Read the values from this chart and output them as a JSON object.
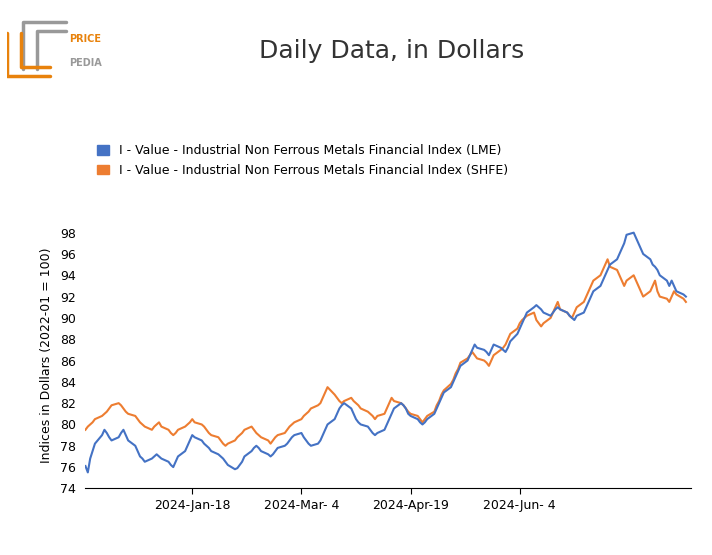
{
  "title": "Daily Data, in Dollars",
  "ylabel": "Indices in Dollars (2022-01 = 100)",
  "ylim": [
    74,
    99
  ],
  "yticks": [
    74,
    76,
    78,
    80,
    82,
    84,
    86,
    88,
    90,
    92,
    94,
    96,
    98
  ],
  "lme_color": "#4472C4",
  "shfe_color": "#ED7D31",
  "lme_label": "I - Value - Industrial Non Ferrous Metals Financial Index (LME)",
  "shfe_label": "I - Value - Industrial Non Ferrous Metals Financial Index (SHFE)",
  "line_width": 1.5,
  "background_color": "#ffffff",
  "title_fontsize": 18,
  "legend_fontsize": 9,
  "axis_fontsize": 9,
  "xlabel_dates": [
    "2024-Jan-18",
    "2024-Mar- 4",
    "2024-Apr-19",
    "2024-Jun- 4"
  ],
  "lme_data": [
    76.1,
    75.5,
    76.8,
    77.5,
    78.2,
    79.0,
    79.5,
    79.2,
    78.8,
    78.5,
    78.8,
    79.2,
    79.5,
    79.0,
    78.5,
    78.0,
    77.5,
    77.0,
    76.8,
    76.5,
    76.8,
    77.0,
    77.2,
    77.0,
    76.8,
    76.5,
    76.2,
    76.0,
    76.5,
    77.0,
    77.5,
    78.0,
    78.5,
    79.0,
    78.8,
    78.5,
    78.2,
    78.0,
    77.8,
    77.5,
    77.2,
    77.0,
    76.8,
    76.5,
    76.2,
    75.8,
    75.9,
    76.2,
    76.5,
    77.0,
    77.5,
    77.8,
    78.0,
    77.8,
    77.5,
    77.2,
    77.0,
    77.2,
    77.5,
    77.8,
    78.0,
    78.2,
    78.5,
    78.8,
    79.0,
    79.2,
    78.8,
    78.5,
    78.2,
    78.0,
    78.2,
    78.5,
    79.0,
    79.5,
    80.0,
    80.5,
    81.0,
    81.5,
    81.8,
    82.0,
    81.5,
    81.0,
    80.5,
    80.2,
    80.0,
    79.8,
    79.5,
    79.2,
    79.0,
    79.2,
    79.5,
    80.0,
    80.5,
    81.0,
    81.5,
    82.0,
    81.8,
    81.5,
    81.0,
    80.8,
    80.5,
    80.2,
    80.0,
    80.2,
    80.5,
    81.0,
    81.5,
    82.0,
    82.5,
    83.0,
    83.5,
    84.0,
    84.5,
    85.0,
    85.5,
    86.0,
    86.5,
    87.0,
    87.5,
    87.2,
    87.0,
    86.8,
    86.5,
    87.0,
    87.5,
    87.2,
    87.0,
    86.8,
    87.2,
    87.8,
    88.5,
    89.0,
    89.5,
    90.0,
    90.5,
    91.0,
    91.2,
    91.0,
    90.8,
    90.5,
    90.2,
    90.5,
    90.8,
    91.0,
    90.8,
    90.5,
    90.2,
    90.0,
    89.8,
    90.2,
    90.5,
    91.0,
    91.5,
    92.0,
    92.5,
    93.0,
    93.5,
    94.0,
    94.5,
    95.0,
    95.5,
    96.0,
    96.5,
    97.0,
    97.8,
    98.0,
    97.5,
    97.0,
    96.5,
    96.0,
    95.5,
    95.0,
    94.8,
    94.5,
    94.0,
    93.5,
    93.0,
    93.5,
    93.0,
    92.5,
    92.2,
    92.0
  ],
  "shfe_data": [
    79.5,
    79.8,
    80.0,
    80.2,
    80.5,
    80.8,
    81.0,
    81.2,
    81.5,
    81.8,
    82.0,
    81.8,
    81.5,
    81.2,
    81.0,
    80.8,
    80.5,
    80.2,
    80.0,
    79.8,
    79.5,
    79.8,
    80.0,
    80.2,
    79.8,
    79.5,
    79.2,
    79.0,
    79.2,
    79.5,
    79.8,
    80.0,
    80.2,
    80.5,
    80.2,
    80.0,
    79.8,
    79.5,
    79.2,
    79.0,
    78.8,
    78.5,
    78.2,
    78.0,
    78.2,
    78.5,
    78.8,
    79.0,
    79.2,
    79.5,
    79.8,
    79.5,
    79.2,
    79.0,
    78.8,
    78.5,
    78.2,
    78.5,
    78.8,
    79.0,
    79.2,
    79.5,
    79.8,
    80.0,
    80.2,
    80.5,
    80.8,
    81.0,
    81.2,
    81.5,
    81.8,
    82.0,
    82.5,
    83.0,
    83.5,
    82.8,
    82.5,
    82.2,
    82.0,
    82.2,
    82.5,
    82.2,
    82.0,
    81.8,
    81.5,
    81.2,
    81.0,
    80.8,
    80.5,
    80.8,
    81.0,
    81.5,
    82.0,
    82.5,
    82.2,
    82.0,
    81.8,
    81.5,
    81.2,
    81.0,
    80.8,
    80.5,
    80.2,
    80.5,
    80.8,
    81.2,
    81.8,
    82.2,
    82.8,
    83.2,
    83.8,
    84.2,
    84.8,
    85.2,
    85.8,
    86.2,
    86.5,
    86.8,
    86.5,
    86.2,
    86.0,
    85.8,
    85.5,
    86.0,
    86.5,
    87.0,
    87.2,
    87.5,
    88.0,
    88.5,
    89.0,
    89.5,
    89.8,
    90.0,
    90.2,
    90.5,
    89.8,
    89.5,
    89.2,
    89.5,
    90.0,
    90.5,
    91.0,
    91.5,
    90.8,
    90.5,
    90.2,
    90.0,
    90.5,
    91.0,
    91.5,
    92.0,
    92.5,
    93.0,
    93.5,
    94.0,
    94.5,
    95.0,
    95.5,
    94.8,
    94.5,
    94.0,
    93.5,
    93.0,
    93.5,
    94.0,
    93.5,
    93.0,
    92.5,
    92.0,
    92.5,
    93.0,
    93.5,
    92.5,
    92.0,
    91.8,
    91.5,
    92.0,
    92.5,
    92.2,
    91.8,
    91.5
  ]
}
